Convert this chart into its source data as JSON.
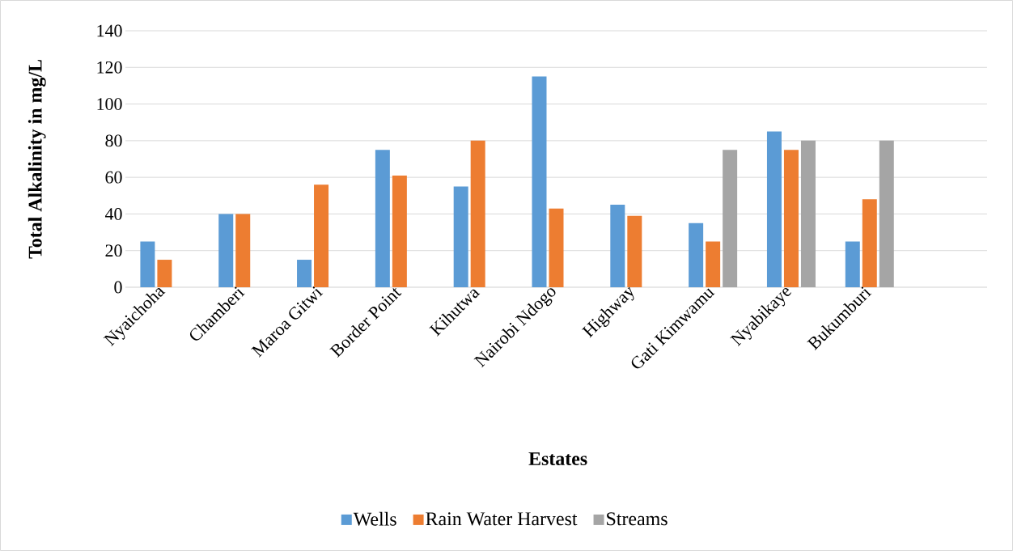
{
  "chart_data": {
    "type": "bar",
    "xlabel": "Estates",
    "ylabel": "Total Alkalinity in mg/L",
    "categories": [
      "Nyaichoha",
      "Chamberi",
      "Maroa Gitwi",
      "Border Point",
      "Kihutwa",
      "Nairobi Ndogo",
      "Highway",
      "Gati Kimwamu",
      "Nyabikaye",
      "Bukumburi",
      null
    ],
    "series": [
      {
        "name": "Wells",
        "color": "#5b9bd5",
        "values": [
          25,
          40,
          15,
          75,
          55,
          115,
          45,
          35,
          85,
          25,
          null
        ]
      },
      {
        "name": "Rain Water Harvest",
        "color": "#ed7d31",
        "values": [
          15,
          40,
          56,
          61,
          80,
          43,
          39,
          25,
          75,
          48,
          null
        ]
      },
      {
        "name": "Streams",
        "color": "#a5a5a5",
        "values": [
          null,
          null,
          null,
          null,
          null,
          null,
          null,
          75,
          80,
          80,
          null
        ]
      }
    ],
    "ylim": [
      0,
      140
    ],
    "yticks": [
      0,
      20,
      40,
      60,
      80,
      100,
      120,
      140
    ],
    "grid": "y",
    "legend": "bottom"
  }
}
